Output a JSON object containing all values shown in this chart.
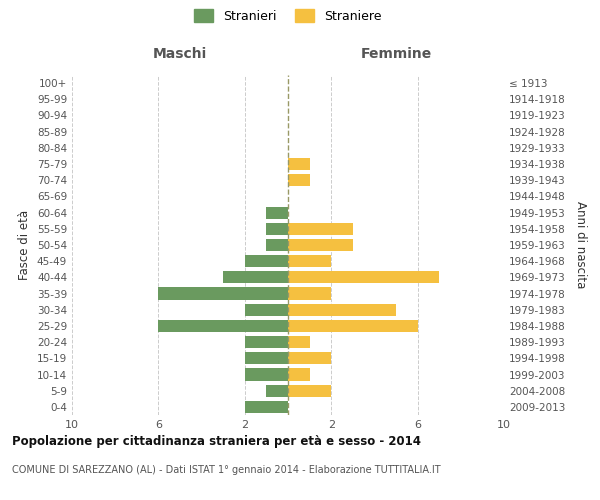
{
  "age_groups": [
    "0-4",
    "5-9",
    "10-14",
    "15-19",
    "20-24",
    "25-29",
    "30-34",
    "35-39",
    "40-44",
    "45-49",
    "50-54",
    "55-59",
    "60-64",
    "65-69",
    "70-74",
    "75-79",
    "80-84",
    "85-89",
    "90-94",
    "95-99",
    "100+"
  ],
  "birth_years": [
    "2009-2013",
    "2004-2008",
    "1999-2003",
    "1994-1998",
    "1989-1993",
    "1984-1988",
    "1979-1983",
    "1974-1978",
    "1969-1973",
    "1964-1968",
    "1959-1963",
    "1954-1958",
    "1949-1953",
    "1944-1948",
    "1939-1943",
    "1934-1938",
    "1929-1933",
    "1924-1928",
    "1919-1923",
    "1914-1918",
    "≤ 1913"
  ],
  "maschi": [
    2,
    1,
    2,
    2,
    2,
    6,
    2,
    6,
    3,
    2,
    1,
    1,
    1,
    0,
    0,
    0,
    0,
    0,
    0,
    0,
    0
  ],
  "femmine": [
    0,
    2,
    1,
    2,
    1,
    6,
    5,
    2,
    7,
    2,
    3,
    3,
    0,
    0,
    1,
    1,
    0,
    0,
    0,
    0,
    0
  ],
  "maschi_color": "#6a9a5f",
  "femmine_color": "#f5c040",
  "title": "Popolazione per cittadinanza straniera per età e sesso - 2014",
  "subtitle": "COMUNE DI SAREZZANO (AL) - Dati ISTAT 1° gennaio 2014 - Elaborazione TUTTITALIA.IT",
  "ylabel_left": "Fasce di età",
  "ylabel_right": "Anni di nascita",
  "xlabel_left": "Maschi",
  "xlabel_right": "Femmine",
  "legend_stranieri": "Stranieri",
  "legend_straniere": "Straniere",
  "xlim": 10,
  "background_color": "#ffffff",
  "grid_color": "#cccccc",
  "center_line_color": "#999966",
  "bar_height": 0.75
}
